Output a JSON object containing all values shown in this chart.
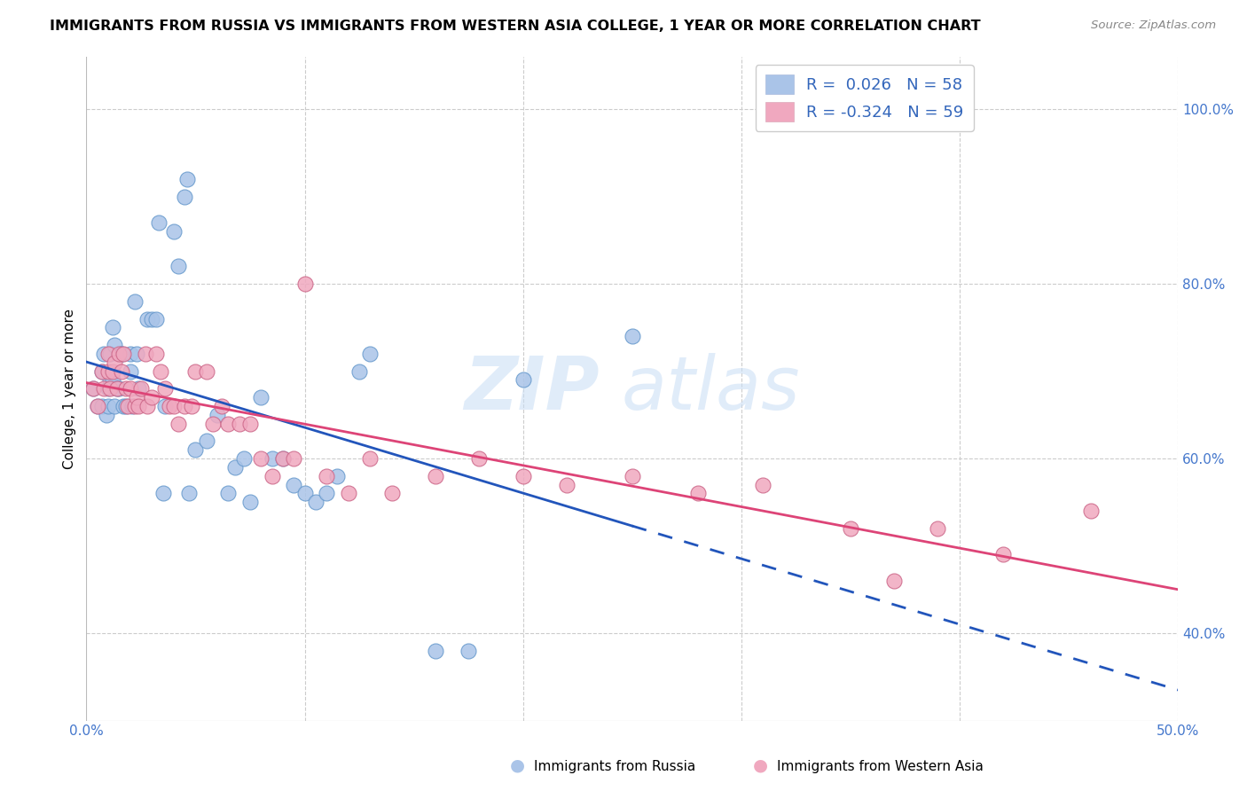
{
  "title": "IMMIGRANTS FROM RUSSIA VS IMMIGRANTS FROM WESTERN ASIA COLLEGE, 1 YEAR OR MORE CORRELATION CHART",
  "source": "Source: ZipAtlas.com",
  "ylabel": "College, 1 year or more",
  "xlim": [
    0.0,
    0.5
  ],
  "ylim": [
    0.3,
    1.06
  ],
  "yticks_right": [
    1.0,
    0.8,
    0.6,
    0.4
  ],
  "ytick_right_labels": [
    "100.0%",
    "80.0%",
    "60.0%",
    "40.0%"
  ],
  "legend_R_blue": "0.026",
  "legend_N_blue": "58",
  "legend_R_pink": "-0.324",
  "legend_N_pink": "59",
  "blue_color": "#aac4e8",
  "pink_color": "#f0a8bf",
  "blue_line_color": "#2255bb",
  "pink_line_color": "#dd4477",
  "grid_color": "#cccccc",
  "background_color": "#ffffff",
  "russia_x": [
    0.003,
    0.005,
    0.007,
    0.007,
    0.008,
    0.009,
    0.01,
    0.01,
    0.011,
    0.011,
    0.012,
    0.012,
    0.013,
    0.013,
    0.014,
    0.015,
    0.016,
    0.016,
    0.017,
    0.018,
    0.02,
    0.02,
    0.021,
    0.022,
    0.023,
    0.024,
    0.028,
    0.03,
    0.032,
    0.033,
    0.035,
    0.036,
    0.04,
    0.042,
    0.045,
    0.046,
    0.047,
    0.05,
    0.055,
    0.06,
    0.065,
    0.068,
    0.072,
    0.075,
    0.08,
    0.085,
    0.09,
    0.095,
    0.1,
    0.105,
    0.11,
    0.115,
    0.125,
    0.13,
    0.16,
    0.175,
    0.2,
    0.25
  ],
  "russia_y": [
    0.68,
    0.66,
    0.7,
    0.66,
    0.72,
    0.65,
    0.68,
    0.66,
    0.69,
    0.72,
    0.75,
    0.69,
    0.66,
    0.73,
    0.68,
    0.68,
    0.72,
    0.72,
    0.66,
    0.66,
    0.7,
    0.72,
    0.66,
    0.78,
    0.72,
    0.68,
    0.76,
    0.76,
    0.76,
    0.87,
    0.56,
    0.66,
    0.86,
    0.82,
    0.9,
    0.92,
    0.56,
    0.61,
    0.62,
    0.65,
    0.56,
    0.59,
    0.6,
    0.55,
    0.67,
    0.6,
    0.6,
    0.57,
    0.56,
    0.55,
    0.56,
    0.58,
    0.7,
    0.72,
    0.38,
    0.38,
    0.69,
    0.74
  ],
  "western_asia_x": [
    0.003,
    0.005,
    0.007,
    0.008,
    0.01,
    0.01,
    0.011,
    0.012,
    0.013,
    0.014,
    0.015,
    0.016,
    0.017,
    0.018,
    0.019,
    0.02,
    0.022,
    0.023,
    0.024,
    0.025,
    0.027,
    0.028,
    0.03,
    0.032,
    0.034,
    0.036,
    0.038,
    0.04,
    0.042,
    0.045,
    0.048,
    0.05,
    0.055,
    0.058,
    0.062,
    0.065,
    0.07,
    0.075,
    0.08,
    0.085,
    0.09,
    0.095,
    0.1,
    0.11,
    0.12,
    0.13,
    0.14,
    0.16,
    0.18,
    0.2,
    0.22,
    0.25,
    0.28,
    0.31,
    0.35,
    0.37,
    0.39,
    0.42,
    0.46
  ],
  "western_asia_y": [
    0.68,
    0.66,
    0.7,
    0.68,
    0.7,
    0.72,
    0.68,
    0.7,
    0.71,
    0.68,
    0.72,
    0.7,
    0.72,
    0.68,
    0.66,
    0.68,
    0.66,
    0.67,
    0.66,
    0.68,
    0.72,
    0.66,
    0.67,
    0.72,
    0.7,
    0.68,
    0.66,
    0.66,
    0.64,
    0.66,
    0.66,
    0.7,
    0.7,
    0.64,
    0.66,
    0.64,
    0.64,
    0.64,
    0.6,
    0.58,
    0.6,
    0.6,
    0.8,
    0.58,
    0.56,
    0.6,
    0.56,
    0.58,
    0.6,
    0.58,
    0.57,
    0.58,
    0.56,
    0.57,
    0.52,
    0.46,
    0.52,
    0.49,
    0.54
  ]
}
